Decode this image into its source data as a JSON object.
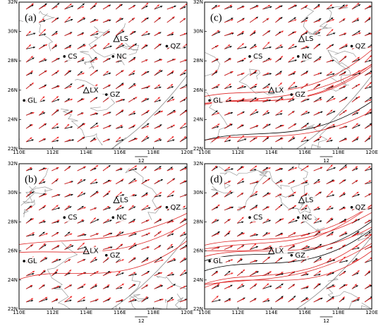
{
  "shared": {
    "xticks": [
      "110E",
      "112E",
      "114E",
      "116E",
      "118E",
      "120E"
    ],
    "yticks": [
      "32N",
      "30N",
      "28N",
      "26N",
      "24N",
      "22N"
    ],
    "stations": [
      "LS",
      "QZ",
      "CS",
      "NC",
      "LX",
      "GZ",
      "GL"
    ]
  },
  "panels": [
    {
      "label": "(a)",
      "reference": "12"
    },
    {
      "label": "(c)",
      "reference": "12"
    },
    {
      "label": "(b)",
      "reference": "12"
    },
    {
      "label": "(d)",
      "reference": "12"
    }
  ]
}
